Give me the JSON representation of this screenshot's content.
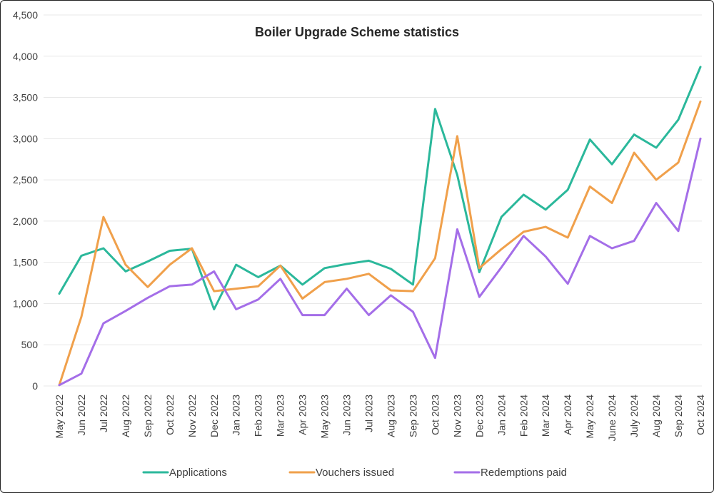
{
  "chart_data": {
    "type": "line",
    "title": "Boiler Upgrade Scheme statistics",
    "xlabel": "",
    "ylabel": "",
    "ylim": [
      0,
      4500
    ],
    "yticks": [
      0,
      500,
      1000,
      1500,
      2000,
      2500,
      3000,
      3500,
      4000,
      4500
    ],
    "ytick_labels": [
      "0",
      "500",
      "1,000",
      "1,500",
      "2,000",
      "2,500",
      "3,000",
      "3,500",
      "4,000",
      "4,500"
    ],
    "grid": true,
    "legend_position": "bottom",
    "categories": [
      "May 2022",
      "Jun 2022",
      "Jul 2022",
      "Aug 2022",
      "Sep 2022",
      "Oct 2022",
      "Nov 2022",
      "Dec 2022",
      "Jan 2023",
      "Feb 2023",
      "Mar 2023",
      "Apr 2023",
      "May 2023",
      "Jun 2023",
      "Jul 2023",
      "Aug 2023",
      "Sep 2023",
      "Oct 2023",
      "Nov 2023",
      "Dec 2023",
      "Jan 2024",
      "Feb 2024",
      "Mar 2024",
      "Apr 2024",
      "May 2024",
      "June 2024",
      "July 2024",
      "Aug 2024",
      "Sep 2024",
      "Oct 2024"
    ],
    "series": [
      {
        "name": "Applications",
        "color": "#2bb89b",
        "values": [
          1120,
          1580,
          1670,
          1390,
          1510,
          1640,
          1665,
          930,
          1470,
          1320,
          1460,
          1230,
          1430,
          1480,
          1520,
          1420,
          1230,
          3360,
          2560,
          1380,
          2050,
          2320,
          2140,
          2380,
          2990,
          2690,
          3050,
          2890,
          3230,
          3870
        ]
      },
      {
        "name": "Vouchers issued",
        "color": "#f0a04b",
        "values": [
          10,
          840,
          2050,
          1470,
          1200,
          1470,
          1670,
          1150,
          1180,
          1210,
          1460,
          1060,
          1260,
          1300,
          1360,
          1160,
          1150,
          1550,
          3030,
          1430,
          1660,
          1870,
          1930,
          1800,
          2420,
          2220,
          2830,
          2500,
          2710,
          3450
        ]
      },
      {
        "name": "Redemptions paid",
        "color": "#a46ee8",
        "values": [
          10,
          150,
          760,
          910,
          1070,
          1210,
          1230,
          1390,
          930,
          1050,
          1300,
          860,
          860,
          1180,
          860,
          1100,
          900,
          340,
          1900,
          1080,
          1440,
          1820,
          1570,
          1240,
          1820,
          1670,
          1760,
          2220,
          1880,
          3000
        ]
      }
    ]
  }
}
